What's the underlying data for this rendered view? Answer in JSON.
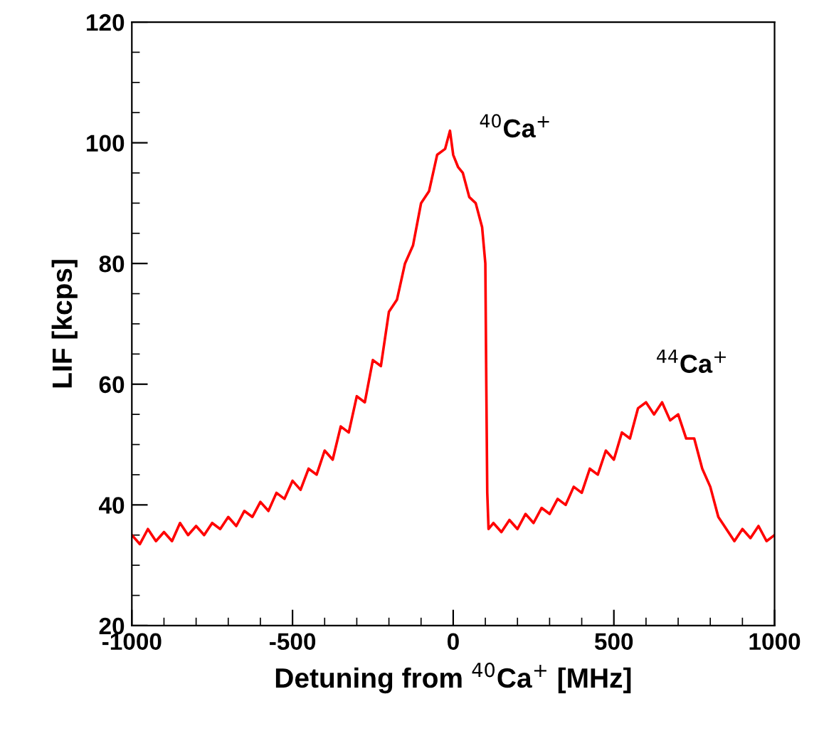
{
  "chart_data": {
    "type": "line",
    "xlabel": "Detuning from $^{40}$Ca$^{+}$ [MHz]",
    "ylabel": "LIF [kcps]",
    "xlim": [
      -1000,
      1000
    ],
    "xticks": [
      -1000,
      -500,
      0,
      500,
      1000
    ],
    "ylim": [
      20,
      120
    ],
    "yticks": [
      20,
      40,
      60,
      80,
      100,
      120
    ],
    "grid": false,
    "legend": false,
    "marker": "none",
    "line_style": "solid",
    "annotations": [
      "$^{40}$Ca$^{+}$",
      "$^{44}$Ca$^{+}$"
    ],
    "series": [
      {
        "color": "#ff0000",
        "x": [
          -1000,
          -975,
          -950,
          -925,
          -900,
          -875,
          -850,
          -825,
          -800,
          -775,
          -750,
          -725,
          -700,
          -675,
          -650,
          -625,
          -600,
          -575,
          -550,
          -525,
          -500,
          -475,
          -450,
          -425,
          -400,
          -375,
          -350,
          -325,
          -300,
          -275,
          -250,
          -225,
          -200,
          -175,
          -150,
          -125,
          -100,
          -75,
          -50,
          -25,
          -10,
          0,
          15,
          30,
          50,
          70,
          90,
          100,
          103,
          106,
          110,
          125,
          150,
          175,
          200,
          225,
          250,
          275,
          300,
          325,
          350,
          375,
          400,
          425,
          450,
          475,
          500,
          525,
          550,
          575,
          600,
          625,
          650,
          675,
          700,
          725,
          750,
          775,
          800,
          825,
          850,
          875,
          900,
          925,
          950,
          975,
          1000
        ],
        "values": [
          35,
          33.5,
          36,
          34,
          35.5,
          34,
          37,
          35,
          36.5,
          35,
          37,
          36,
          38,
          36.5,
          39,
          38,
          40.5,
          39,
          42,
          41,
          44,
          42.5,
          46,
          45,
          49,
          47.5,
          53,
          52,
          58,
          57,
          64,
          63,
          72,
          74,
          80,
          83,
          90,
          92,
          98,
          99,
          102,
          98,
          96,
          95,
          91,
          90,
          86,
          80,
          60,
          42,
          36,
          37,
          35.5,
          37.5,
          36,
          38.5,
          37,
          39.5,
          38.5,
          41,
          40,
          43,
          42,
          46,
          45,
          49,
          47.5,
          52,
          51,
          56,
          57,
          55,
          57,
          54,
          55,
          51,
          51,
          46,
          43,
          38,
          36,
          34,
          36,
          34.5,
          36.5,
          34,
          35
        ]
      }
    ]
  }
}
